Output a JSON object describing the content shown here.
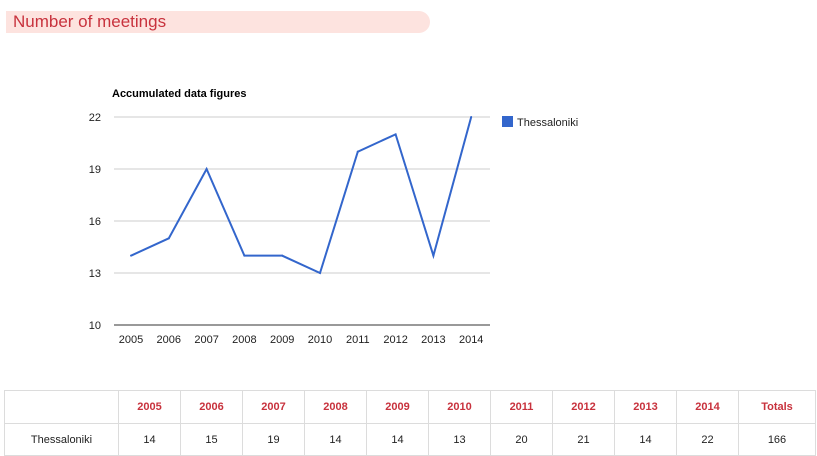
{
  "header": {
    "title": "Number of meetings"
  },
  "colors": {
    "series": "#3366cc",
    "header_bg": "#fde3df",
    "accent": "#c8323d"
  },
  "chart_data": {
    "type": "line",
    "title": "Accumulated data figures",
    "x": [
      "2005",
      "2006",
      "2007",
      "2008",
      "2009",
      "2010",
      "2011",
      "2012",
      "2013",
      "2014"
    ],
    "series": [
      {
        "name": "Thessaloniki",
        "values": [
          14,
          15,
          19,
          14,
          14,
          13,
          20,
          21,
          14,
          22
        ]
      }
    ],
    "ylim": [
      10,
      22
    ],
    "yticks": [
      10,
      13,
      16,
      19,
      22
    ],
    "grid": true,
    "legend": "right"
  },
  "table": {
    "headers": [
      "",
      "2005",
      "2006",
      "2007",
      "2008",
      "2009",
      "2010",
      "2011",
      "2012",
      "2013",
      "2014",
      "Totals"
    ],
    "rows": [
      [
        "Thessaloniki",
        "14",
        "15",
        "19",
        "14",
        "14",
        "13",
        "20",
        "21",
        "14",
        "22",
        "166"
      ]
    ]
  }
}
